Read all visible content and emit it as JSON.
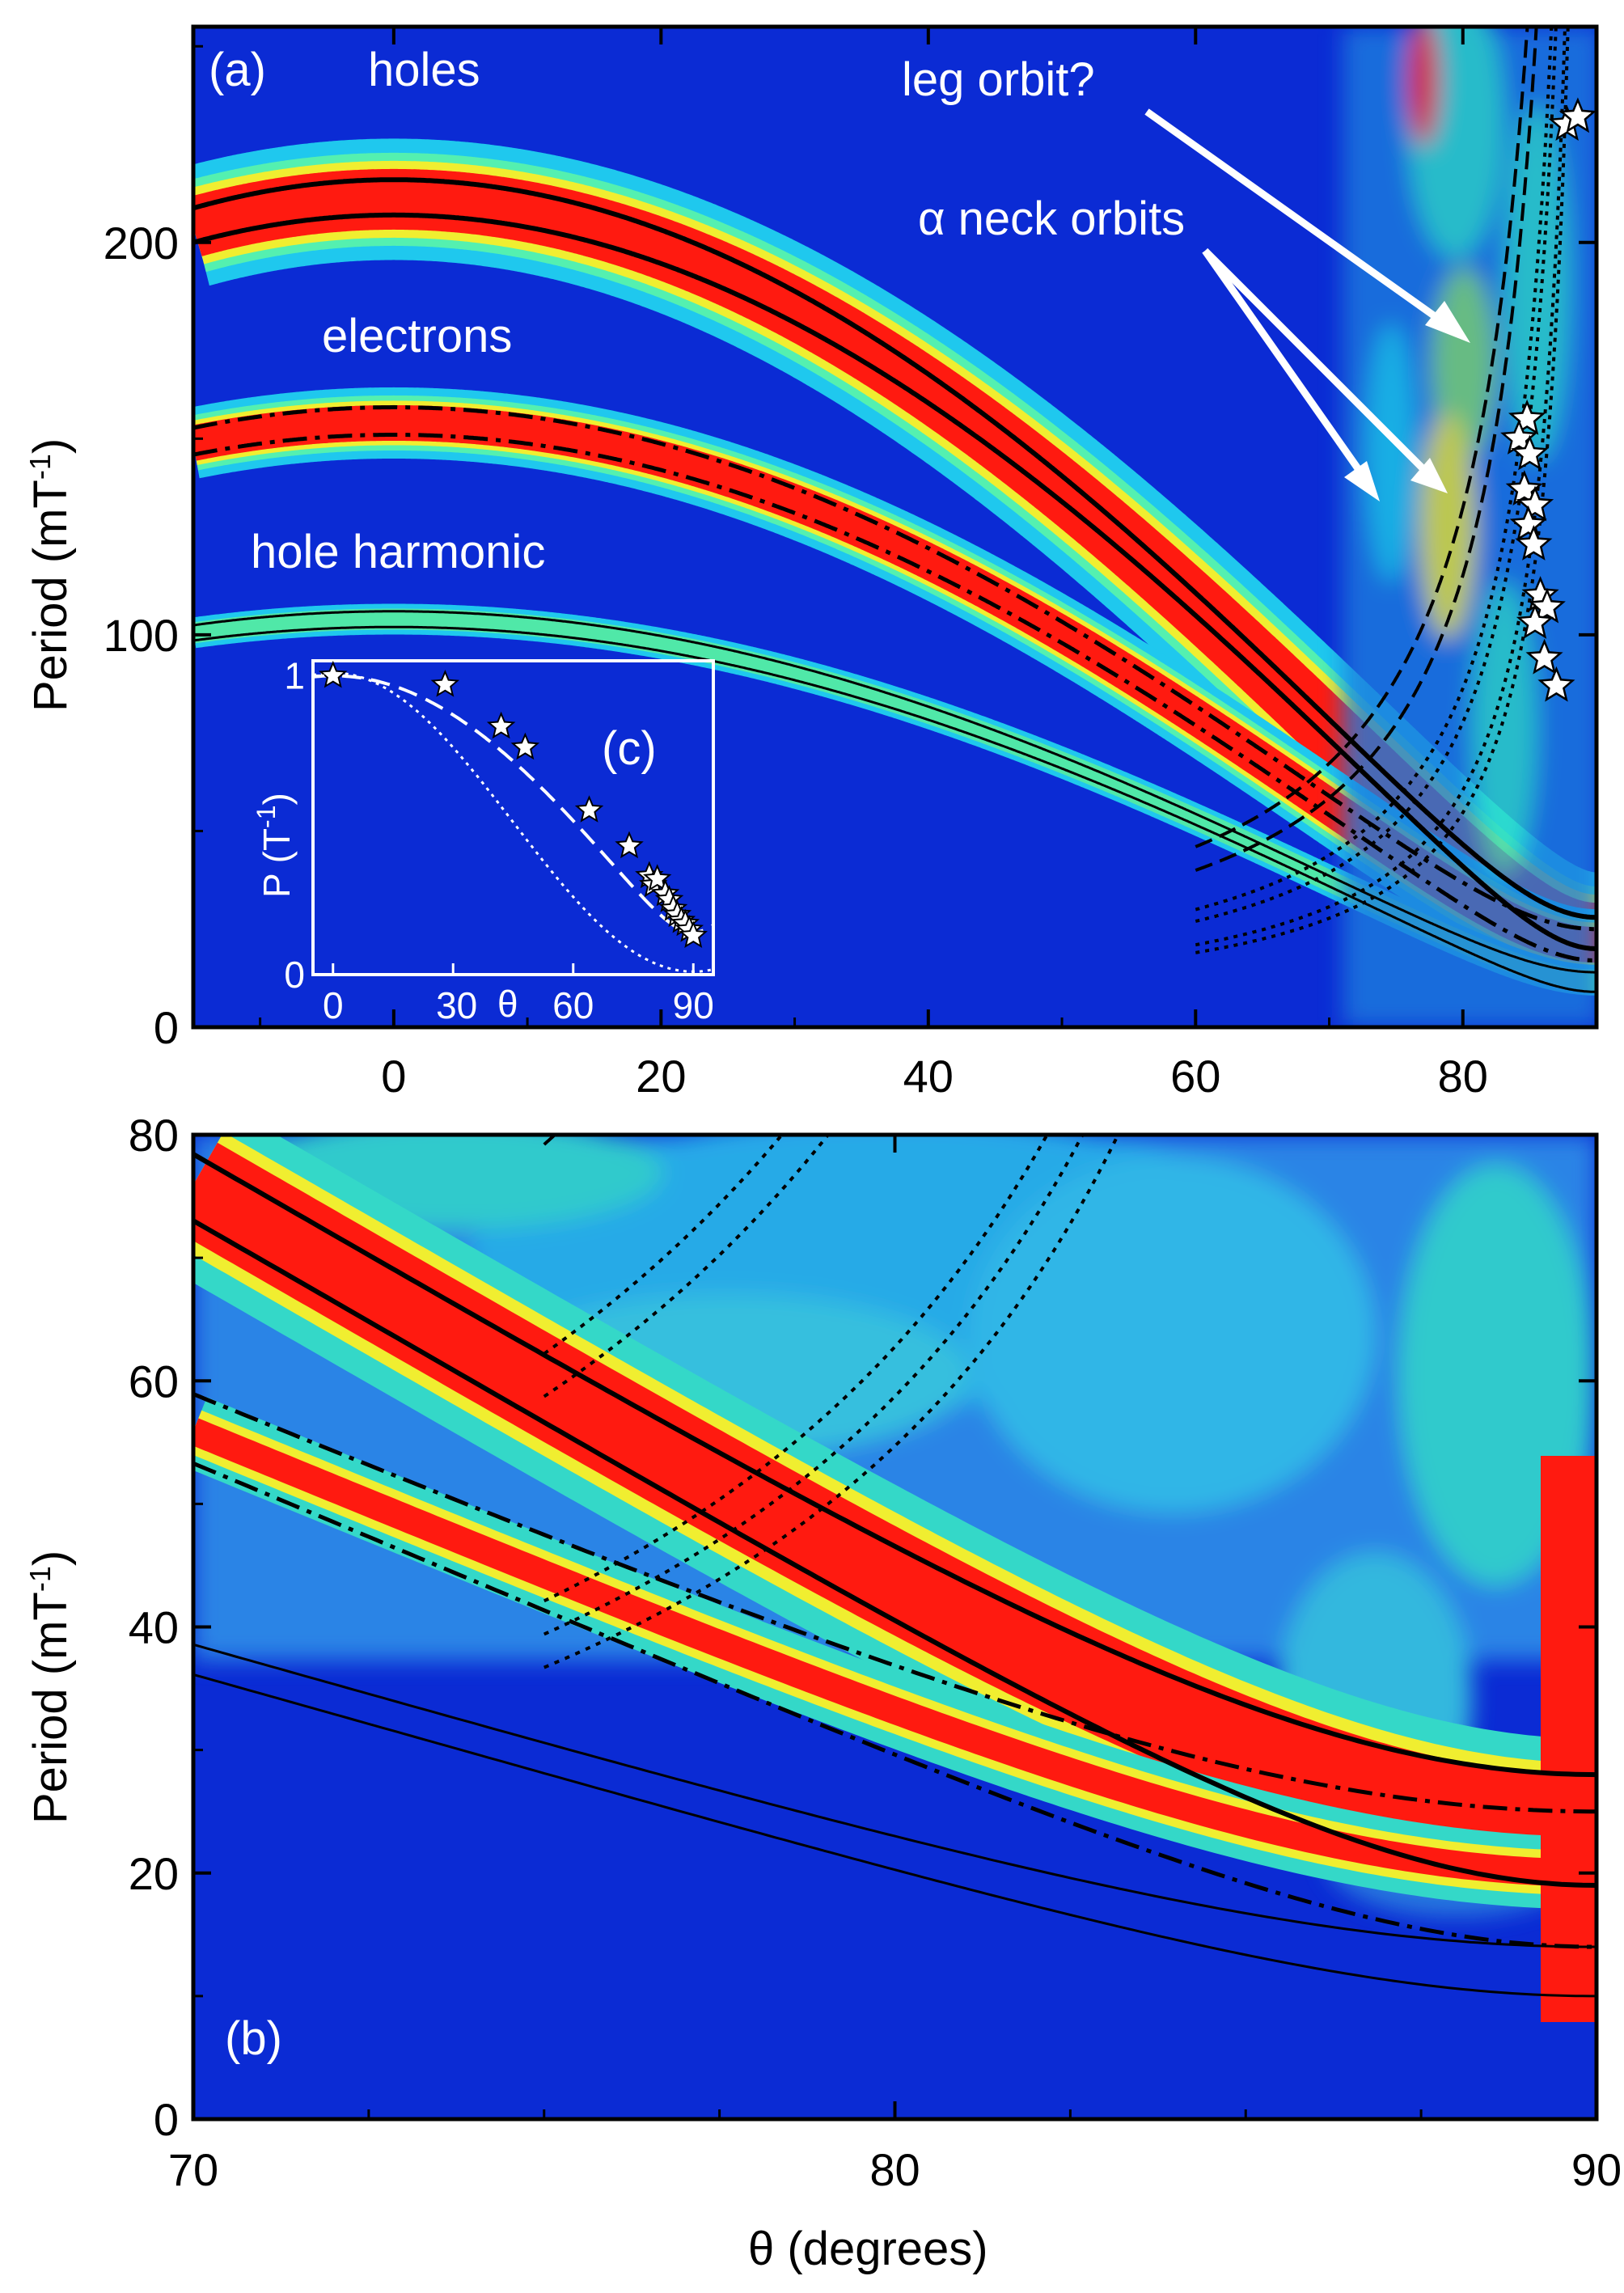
{
  "chart_data": [
    {
      "panel": "a",
      "type": "heatmap",
      "panel_label": "(a)",
      "xlabel": "",
      "ylabel": "Period (mT",
      "ylabel_sup": "-1",
      "ylabel_close": ")",
      "xlim": [
        -15,
        90
      ],
      "ylim": [
        0,
        255
      ],
      "xticks": [
        0,
        20,
        40,
        60,
        80
      ],
      "yticks": [
        0,
        100,
        200
      ],
      "annotations": {
        "holes": "holes",
        "electrons": "electrons",
        "hole_harmonic": "hole harmonic",
        "leg_orbit": "leg orbit?",
        "neck_orbits": "α neck orbits"
      },
      "curves": [
        {
          "style": "solid-thick",
          "p0": 216,
          "pmin": 28
        },
        {
          "style": "solid-thick",
          "p0": 207,
          "pmin": 20
        },
        {
          "style": "dashdot",
          "p0": 158,
          "pmin": 25
        },
        {
          "style": "dashdot",
          "p0": 151,
          "pmin": 17
        },
        {
          "style": "solid-thin",
          "p0": 106,
          "pmin": 14
        },
        {
          "style": "solid-thin",
          "p0": 102,
          "pmin": 9
        }
      ],
      "stars": {
        "x": [
          87.8,
          88.6,
          84.8,
          84.2,
          85.0,
          84.6,
          85.4,
          84.9,
          85.3,
          85.8,
          86.3,
          85.4,
          86.1,
          87.0
        ],
        "y": [
          230,
          232,
          155,
          150,
          146,
          137,
          133,
          128,
          123,
          110,
          107,
          103,
          94,
          87
        ]
      }
    },
    {
      "panel": "c",
      "type": "scatter",
      "panel_label": "(c)",
      "xlabel": "θ",
      "ylabel": "P (T",
      "ylabel_sup": "-1",
      "ylabel_close": ")",
      "xlim": [
        -5,
        95
      ],
      "ylim": [
        0,
        1.05
      ],
      "xticks": [
        0,
        30,
        60,
        90
      ],
      "yticks": [
        0,
        1
      ],
      "stars": {
        "x": [
          0,
          28,
          42,
          48,
          64,
          74,
          79,
          80,
          81,
          83,
          84,
          85,
          86,
          87,
          88,
          89,
          90
        ],
        "y": [
          1.0,
          0.97,
          0.83,
          0.76,
          0.55,
          0.43,
          0.33,
          0.3,
          0.32,
          0.27,
          0.25,
          0.22,
          0.2,
          0.18,
          0.17,
          0.15,
          0.13
        ]
      }
    },
    {
      "panel": "b",
      "type": "heatmap",
      "panel_label": "(b)",
      "xlabel": "θ (degrees)",
      "ylabel": "Period (mT",
      "ylabel_sup": "-1",
      "ylabel_close": ")",
      "xlim": [
        70,
        90
      ],
      "ylim": [
        0,
        80
      ],
      "xticks": [
        70,
        80,
        90
      ],
      "yticks": [
        0,
        20,
        40,
        60,
        80
      ],
      "curves": [
        {
          "style": "solid-thick",
          "p0": 216,
          "pmin": 28
        },
        {
          "style": "solid-thick",
          "p0": 207,
          "pmin": 19
        },
        {
          "style": "dashdot",
          "p0": 158,
          "pmin": 25
        },
        {
          "style": "dashdot",
          "p0": 151,
          "pmin": 14
        },
        {
          "style": "solid-thin",
          "p0": 106,
          "pmin": 14
        },
        {
          "style": "solid-thin",
          "p0": 102,
          "pmin": 10
        }
      ]
    }
  ]
}
